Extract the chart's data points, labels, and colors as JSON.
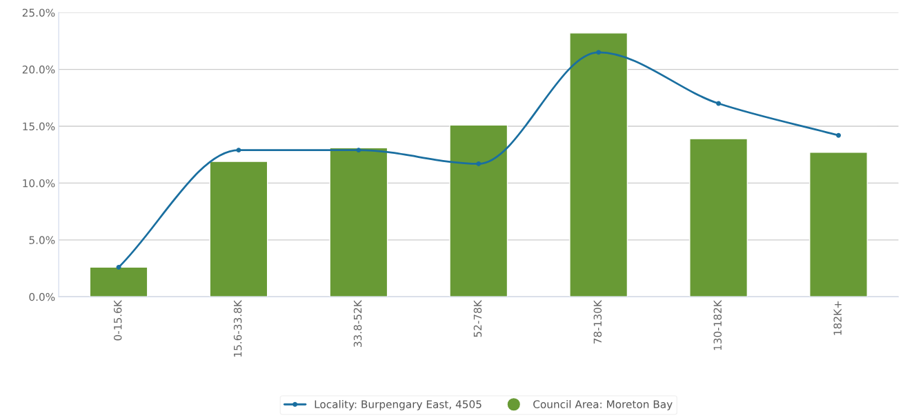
{
  "chart_data": {
    "type": "bar",
    "categories": [
      "0-15.6K",
      "15.6-33.8K",
      "33.8-52K",
      "52-78K",
      "78-130K",
      "130-182K",
      "182K+"
    ],
    "series": [
      {
        "name": "Locality: Burpengary East, 4505",
        "type": "line",
        "color": "#1a6fa0",
        "marker": "circle",
        "line_style": "solid",
        "values": [
          2.6,
          12.9,
          12.9,
          11.7,
          21.5,
          17.0,
          14.2
        ]
      },
      {
        "name": "Council Area: Moreton Bay",
        "color": "#689a35",
        "values": [
          2.6,
          11.9,
          13.1,
          15.1,
          23.2,
          13.9,
          12.7
        ]
      }
    ],
    "ylim": [
      0,
      25
    ],
    "yticks": [
      {
        "value": 0,
        "label": "0.0%"
      },
      {
        "value": 5,
        "label": "5.0%"
      },
      {
        "value": 10,
        "label": "10.0%"
      },
      {
        "value": 15,
        "label": "15.0%"
      },
      {
        "value": 20,
        "label": "20.0%"
      },
      {
        "value": 25,
        "label": "25.0%"
      }
    ],
    "grid": "y",
    "legend": "bottom"
  }
}
